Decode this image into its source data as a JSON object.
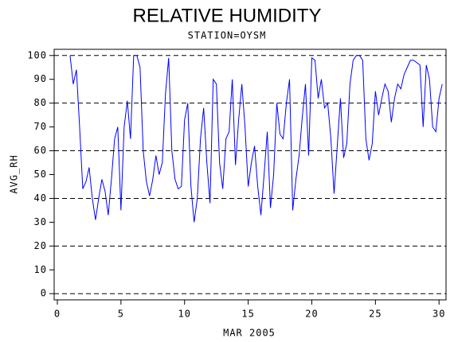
{
  "chart_data": {
    "type": "line",
    "title": "RELATIVE HUMIDITY",
    "subtitle": "STATION=OYSM",
    "x_label": "MAR 2005",
    "y_label": "AVG_RH",
    "xlim": [
      -0.25,
      30.55
    ],
    "ylim": [
      -2.6,
      102.6
    ],
    "xticks": [
      0,
      5,
      10,
      15,
      20,
      25,
      30
    ],
    "yticks": [
      0,
      10,
      20,
      30,
      40,
      50,
      60,
      70,
      80,
      90,
      100
    ],
    "grid_values": [
      0,
      20,
      40,
      60,
      80,
      100
    ],
    "x": [
      1,
      1.25,
      1.5,
      1.75,
      2,
      2.25,
      2.5,
      2.75,
      3,
      3.25,
      3.5,
      3.75,
      4,
      4.25,
      4.5,
      4.75,
      5,
      5.25,
      5.5,
      5.75,
      6,
      6.25,
      6.5,
      6.75,
      7,
      7.25,
      7.5,
      7.75,
      8,
      8.25,
      8.5,
      8.75,
      9,
      9.25,
      9.5,
      9.75,
      10,
      10.25,
      10.5,
      10.75,
      11,
      11.25,
      11.5,
      11.75,
      12,
      12.25,
      12.5,
      12.75,
      13,
      13.25,
      13.5,
      13.75,
      14,
      14.25,
      14.5,
      14.75,
      15,
      15.25,
      15.5,
      15.75,
      16,
      16.25,
      16.5,
      16.75,
      17,
      17.25,
      17.5,
      17.75,
      18,
      18.25,
      18.5,
      18.75,
      19,
      19.25,
      19.5,
      19.75,
      20,
      20.25,
      20.5,
      20.75,
      21,
      21.25,
      21.5,
      21.75,
      22,
      22.25,
      22.5,
      22.75,
      23,
      23.25,
      23.5,
      23.75,
      24,
      24.25,
      24.5,
      24.75,
      25,
      25.25,
      25.5,
      25.75,
      26,
      26.25,
      26.5,
      26.75,
      27,
      27.25,
      27.5,
      27.75,
      28,
      28.25,
      28.5,
      28.75,
      29,
      29.25,
      29.5,
      29.75,
      30,
      30.25
    ],
    "series": [
      {
        "name": "AVG_RH",
        "color": "#0000ff",
        "values": [
          100,
          88,
          94,
          70,
          44,
          47,
          53,
          40,
          31,
          40,
          48,
          43,
          33,
          48,
          65,
          70,
          35,
          70,
          81,
          65,
          100,
          100,
          95,
          60,
          47,
          41,
          48,
          58,
          50,
          55,
          84,
          99,
          60,
          48,
          44,
          45,
          73,
          80,
          45,
          30,
          40,
          65,
          78,
          55,
          38,
          90,
          88,
          55,
          44,
          65,
          68,
          90,
          54,
          73,
          88,
          70,
          45,
          55,
          62,
          45,
          33,
          50,
          68,
          36,
          50,
          80,
          67,
          65,
          80,
          90,
          35,
          48,
          58,
          74,
          88,
          58,
          99,
          98,
          82,
          90,
          78,
          80,
          65,
          42,
          62,
          82,
          57,
          63,
          88,
          98,
          100,
          100,
          98,
          65,
          56,
          63,
          85,
          75,
          82,
          88,
          85,
          72,
          82,
          88,
          86,
          92,
          95,
          98,
          98,
          97,
          96,
          70,
          96,
          90,
          70,
          68,
          82,
          88
        ]
      }
    ]
  }
}
